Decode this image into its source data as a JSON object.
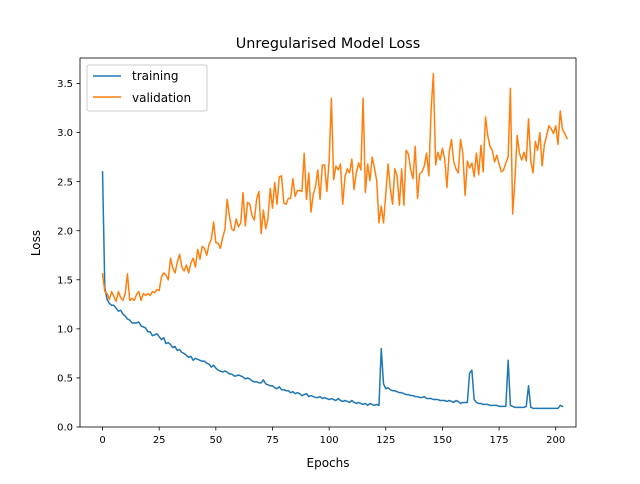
{
  "chart_data": {
    "type": "line",
    "title": "Unregularised Model Loss",
    "xlabel": "Epochs",
    "ylabel": "Loss",
    "xlim": [
      -9.95,
      208.95
    ],
    "ylim": [
      0,
      3.76
    ],
    "xticks": [
      0,
      25,
      50,
      75,
      100,
      125,
      150,
      175,
      200
    ],
    "yticks": [
      0.0,
      0.5,
      1.0,
      1.5,
      2.0,
      2.5,
      3.0,
      3.5
    ],
    "ytick_labels": [
      "0.0",
      "0.5",
      "1.0",
      "1.5",
      "2.0",
      "2.5",
      "3.0",
      "3.5"
    ],
    "grid": false,
    "legend_position": "top-left",
    "series": [
      {
        "name": "training",
        "color": "#1f77b4",
        "x_start": 0,
        "values": [
          2.6,
          1.42,
          1.3,
          1.26,
          1.24,
          1.24,
          1.21,
          1.18,
          1.19,
          1.15,
          1.13,
          1.1,
          1.09,
          1.06,
          1.06,
          1.06,
          1.07,
          1.03,
          1.02,
          1.01,
          0.97,
          0.97,
          0.93,
          0.94,
          0.95,
          0.92,
          0.89,
          0.91,
          0.85,
          0.86,
          0.84,
          0.81,
          0.82,
          0.78,
          0.79,
          0.76,
          0.75,
          0.73,
          0.71,
          0.72,
          0.68,
          0.7,
          0.69,
          0.68,
          0.67,
          0.67,
          0.65,
          0.64,
          0.61,
          0.63,
          0.6,
          0.58,
          0.57,
          0.56,
          0.57,
          0.56,
          0.54,
          0.54,
          0.52,
          0.52,
          0.53,
          0.52,
          0.51,
          0.49,
          0.5,
          0.49,
          0.47,
          0.46,
          0.46,
          0.45,
          0.45,
          0.48,
          0.44,
          0.43,
          0.42,
          0.42,
          0.4,
          0.39,
          0.41,
          0.38,
          0.38,
          0.37,
          0.37,
          0.35,
          0.36,
          0.34,
          0.35,
          0.34,
          0.32,
          0.33,
          0.34,
          0.31,
          0.32,
          0.31,
          0.3,
          0.3,
          0.31,
          0.29,
          0.3,
          0.29,
          0.28,
          0.29,
          0.28,
          0.27,
          0.29,
          0.27,
          0.26,
          0.27,
          0.26,
          0.25,
          0.27,
          0.25,
          0.24,
          0.25,
          0.24,
          0.23,
          0.24,
          0.22,
          0.24,
          0.23,
          0.22,
          0.23,
          0.22,
          0.8,
          0.44,
          0.39,
          0.4,
          0.38,
          0.37,
          0.37,
          0.36,
          0.35,
          0.35,
          0.34,
          0.33,
          0.33,
          0.32,
          0.32,
          0.31,
          0.31,
          0.3,
          0.3,
          0.31,
          0.29,
          0.29,
          0.29,
          0.28,
          0.28,
          0.28,
          0.27,
          0.27,
          0.27,
          0.26,
          0.27,
          0.26,
          0.25,
          0.27,
          0.26,
          0.24,
          0.25,
          0.25,
          0.25,
          0.55,
          0.58,
          0.28,
          0.25,
          0.24,
          0.24,
          0.23,
          0.23,
          0.23,
          0.22,
          0.22,
          0.22,
          0.22,
          0.21,
          0.21,
          0.21,
          0.21,
          0.68,
          0.22,
          0.21,
          0.2,
          0.2,
          0.2,
          0.2,
          0.2,
          0.21,
          0.42,
          0.2,
          0.19,
          0.19,
          0.19,
          0.19,
          0.19,
          0.19,
          0.19,
          0.19,
          0.19,
          0.19,
          0.19,
          0.19,
          0.22,
          0.21
        ]
      },
      {
        "name": "validation",
        "color": "#ff7f0e",
        "x_start": 0,
        "values": [
          1.56,
          1.38,
          1.36,
          1.3,
          1.38,
          1.33,
          1.28,
          1.38,
          1.32,
          1.29,
          1.36,
          1.56,
          1.29,
          1.31,
          1.29,
          1.35,
          1.38,
          1.29,
          1.36,
          1.34,
          1.36,
          1.34,
          1.38,
          1.37,
          1.4,
          1.39,
          1.53,
          1.57,
          1.55,
          1.5,
          1.72,
          1.62,
          1.57,
          1.68,
          1.76,
          1.63,
          1.59,
          1.65,
          1.57,
          1.67,
          1.72,
          1.63,
          1.81,
          1.71,
          1.84,
          1.82,
          1.75,
          1.86,
          1.91,
          2.09,
          1.88,
          1.87,
          1.82,
          1.93,
          2.01,
          2.32,
          2.15,
          2.02,
          2.0,
          2.12,
          2.04,
          2.08,
          2.39,
          2.05,
          2.29,
          2.27,
          2.15,
          2.11,
          2.32,
          2.4,
          1.97,
          2.21,
          2.02,
          2.12,
          2.43,
          2.23,
          2.49,
          2.27,
          2.55,
          2.56,
          2.28,
          2.27,
          2.33,
          2.33,
          2.53,
          2.35,
          2.41,
          2.41,
          2.4,
          2.79,
          2.32,
          2.59,
          2.19,
          2.37,
          2.45,
          2.62,
          2.32,
          2.67,
          2.67,
          2.4,
          2.71,
          3.35,
          2.52,
          2.66,
          2.62,
          2.68,
          2.27,
          2.55,
          2.63,
          2.59,
          2.73,
          2.42,
          2.59,
          2.69,
          2.62,
          3.35,
          2.39,
          2.68,
          2.51,
          2.75,
          2.64,
          2.51,
          2.08,
          2.25,
          2.08,
          2.37,
          2.68,
          2.43,
          2.27,
          2.63,
          2.56,
          2.26,
          2.63,
          2.26,
          2.82,
          2.78,
          2.62,
          2.53,
          2.86,
          2.33,
          2.58,
          2.6,
          2.66,
          2.79,
          2.56,
          3.23,
          3.6,
          2.67,
          2.8,
          2.72,
          2.84,
          2.73,
          2.44,
          2.8,
          2.93,
          2.7,
          2.63,
          2.59,
          2.93,
          2.79,
          2.36,
          2.71,
          2.64,
          2.69,
          2.55,
          2.79,
          2.57,
          2.87,
          2.6,
          3.16,
          2.97,
          2.86,
          2.82,
          2.7,
          2.77,
          2.68,
          2.6,
          2.62,
          2.69,
          2.75,
          3.45,
          2.17,
          2.52,
          2.97,
          2.79,
          2.72,
          2.8,
          2.71,
          3.14,
          2.71,
          2.59,
          2.91,
          2.82,
          3.0,
          2.66,
          2.88,
          2.97,
          3.07,
          3.04,
          2.99,
          3.07,
          2.88,
          3.22,
          3.03,
          2.99,
          2.94
        ]
      }
    ]
  }
}
